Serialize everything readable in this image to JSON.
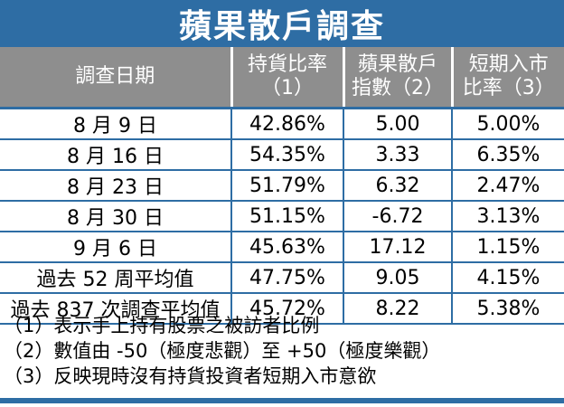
{
  "title": "蘋果散戶調查",
  "headers": [
    [
      "調查日期"
    ],
    [
      "持貨比率",
      "（1）"
    ],
    [
      "蘋果散戶",
      "指數（2）"
    ],
    [
      "短期入市",
      "比率（3）"
    ]
  ],
  "rows": [
    [
      "8 月 9 日",
      "42.86%",
      "5.00",
      "5.00%"
    ],
    [
      "8 月 16 日",
      "54.35%",
      "3.33",
      "6.35%"
    ],
    [
      "8 月 23 日",
      "51.79%",
      "6.32",
      "2.47%"
    ],
    [
      "8 月 30 日",
      "51.15%",
      "-6.72",
      "3.13%"
    ],
    [
      "9 月 6 日",
      "45.63%",
      "17.12",
      "1.15%"
    ],
    [
      "過去 52 周平均值",
      "47.75%",
      "9.05",
      "4.15%"
    ],
    [
      "過去 837 次調查平均值",
      "45.72%",
      "8.22",
      "5.38%"
    ]
  ],
  "notes": [
    "（1）表示手上持有股票之被訪者比例",
    "（2）數值由 -50（極度悲觀）至 +50（極度樂觀）",
    "（3）反映現時沒有持貨投資者短期入市意欲"
  ],
  "colors": {
    "accent": "#2e6da4",
    "header_bg": "#8e8e8e"
  }
}
